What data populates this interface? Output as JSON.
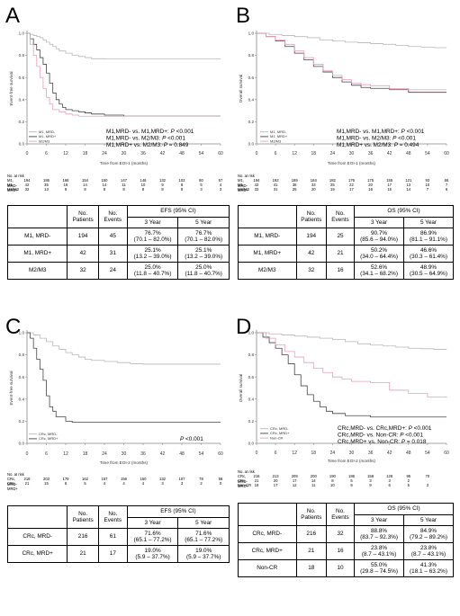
{
  "panels": [
    {
      "letter": "A",
      "ylabel": "Event-free survival",
      "xlabel": "Time from EOI-1 (months)",
      "legend": [
        "M1, MRD-",
        "M1, MRD+",
        "M2/M3"
      ],
      "stats": [
        {
          "text": "M1,MRD- vs. M1,MRD+:",
          "p": "P <0.001"
        },
        {
          "text": "M1,MRD- vs. M2/M3:",
          "p": "P <0.001"
        },
        {
          "text": "M1,MRD+ vs. M2/M3:",
          "p": "P = 0.849"
        }
      ],
      "risk_title": "No. at risk",
      "risk_rows": [
        {
          "label": "M1, MRD-",
          "values": [
            "194",
            "186",
            "166",
            "154",
            "150",
            "147",
            "146",
            "132",
            "103",
            "80",
            "57"
          ]
        },
        {
          "label": "M1, MRD+",
          "values": [
            "42",
            "35",
            "18",
            "14",
            "14",
            "11",
            "10",
            "9",
            "8",
            "6",
            "4"
          ]
        },
        {
          "label": "M2/M3",
          "values": [
            "32",
            "13",
            "9",
            "8",
            "8",
            "8",
            "8",
            "8",
            "8",
            "3",
            "3"
          ]
        }
      ],
      "table": {
        "h_patients": "No. Patients",
        "h_events": "No. Events",
        "h_ci": "EFS (95% CI)",
        "h_3y": "3 Year",
        "h_5y": "5 Year",
        "rows": [
          {
            "label": "M1, MRD-",
            "patients": "194",
            "events": "45",
            "y3": "76.7%",
            "y3ci": "(70.1 – 82.0%)",
            "y5": "76.7%",
            "y5ci": "(70.1 – 82.0%)"
          },
          {
            "label": "M1, MRD+",
            "patients": "42",
            "events": "31",
            "y3": "25.1%",
            "y3ci": "(13.2 – 39.0%)",
            "y5": "25.1%",
            "y5ci": "(13.2 – 39.0%)"
          },
          {
            "label": "M2/M3",
            "patients": "32",
            "events": "24",
            "y3": "25.0%",
            "y3ci": "(11.8 – 40.7%)",
            "y5": "25.0%",
            "y5ci": "(11.8 – 40.7%)"
          }
        ]
      }
    },
    {
      "letter": "B",
      "ylabel": "Overall survival",
      "xlabel": "Time from EOI-1 (months)",
      "legend": [
        "M1, MRD-",
        "M1, MRD+",
        "M2/M3"
      ],
      "stats": [
        {
          "text": "M1,MRD- vs. M1,MRD+:",
          "p": "P <0.001"
        },
        {
          "text": "M1,MRD- vs. M2/M3:",
          "p": "P <0.001"
        },
        {
          "text": "M1,MRD+ vs. M2/M3:",
          "p": "P = 0.494"
        }
      ],
      "risk_title": "No. at risk",
      "risk_rows": [
        {
          "label": "M1, MRD-",
          "values": [
            "194",
            "192",
            "189",
            "184",
            "182",
            "176",
            "175",
            "155",
            "121",
            "93",
            "66"
          ]
        },
        {
          "label": "M1, MRD+",
          "values": [
            "42",
            "41",
            "38",
            "33",
            "25",
            "22",
            "20",
            "17",
            "13",
            "10",
            "7"
          ]
        },
        {
          "label": "M2/M3",
          "values": [
            "32",
            "31",
            "25",
            "20",
            "19",
            "17",
            "16",
            "15",
            "14",
            "7",
            "6"
          ]
        }
      ],
      "table": {
        "h_patients": "No. Patients",
        "h_events": "No. Events",
        "h_ci": "OS (95% CI)",
        "h_3y": "3 Year",
        "h_5y": "5 Year",
        "rows": [
          {
            "label": "M1, MRD-",
            "patients": "194",
            "events": "25",
            "y3": "90.7%",
            "y3ci": "(85.6 – 94.0%)",
            "y5": "86.9%",
            "y5ci": "(81.1 – 91.1%)"
          },
          {
            "label": "M1, MRD+",
            "patients": "42",
            "events": "21",
            "y3": "50.2%",
            "y3ci": "(34.0 – 64.4%)",
            "y5": "46.6%",
            "y5ci": "(30.3 – 61.4%)"
          },
          {
            "label": "M2/M3",
            "patients": "32",
            "events": "16",
            "y3": "52.6%",
            "y3ci": "(34.1 – 68.2%)",
            "y5": "48.9%",
            "y5ci": "(30.5 – 64.9%)"
          }
        ]
      }
    },
    {
      "letter": "C",
      "ylabel": "Event-free survival",
      "xlabel": "Time from EOI-2 (months)",
      "legend": [
        "CRc, MRD-",
        "CRc, MRD+"
      ],
      "stats": [
        {
          "text": "",
          "p": "P <0.001"
        }
      ],
      "risk_title": "No. at risk",
      "risk_rows": [
        {
          "label": "CRc, MRD-",
          "values": [
            "216",
            "203",
            "179",
            "162",
            "157",
            "156",
            "150",
            "132",
            "107",
            "78",
            "58"
          ]
        },
        {
          "label": "CRc, MRD+",
          "values": [
            "21",
            "15",
            "6",
            "5",
            "4",
            "4",
            "4",
            "3",
            "3",
            "2",
            "0"
          ]
        }
      ],
      "table": {
        "h_patients": "No. Patients",
        "h_events": "No. Events",
        "h_ci": "EFS (95% CI)",
        "h_3y": "3 Year",
        "h_5y": "5 Year",
        "rows": [
          {
            "label": "CRc, MRD-",
            "patients": "216",
            "events": "61",
            "y3": "71.6%",
            "y3ci": "(65.1 – 77.2%)",
            "y5": "71.6%",
            "y5ci": "(65.1 – 77.2%)"
          },
          {
            "label": "CRc, MRD+",
            "patients": "21",
            "events": "17",
            "y3": "19.0%",
            "y3ci": "(5.9 – 37.7%)",
            "y5": "19.0%",
            "y5ci": "(5.9 – 37.7%)"
          }
        ]
      }
    },
    {
      "letter": "D",
      "ylabel": "Overall survival",
      "xlabel": "Time from EOI-2 (months)",
      "legend": [
        "CRc, MRD-",
        "CRc, MRD+",
        "Non-CR"
      ],
      "stats": [
        {
          "text": "CRc,MRD- vs. CRc,MRD+:",
          "p": "P <0.001"
        },
        {
          "text": "CRc,MRD- vs. Non-CR:",
          "p": "P <0.001"
        },
        {
          "text": "CRc,MRD+ vs. Non-CR:",
          "p": "P = 0.018"
        }
      ],
      "risk_title": "No. at risk",
      "risk_rows": [
        {
          "label": "CRc, MRD-",
          "values": [
            "216",
            "213",
            "209",
            "200",
            "190",
            "186",
            "158",
            "128",
            "95",
            "70"
          ]
        },
        {
          "label": "CRc, MRD+",
          "values": [
            "21",
            "20",
            "17",
            "14",
            "8",
            "5",
            "3",
            "3",
            "2"
          ]
        },
        {
          "label": "Non-CR",
          "values": [
            "18",
            "17",
            "12",
            "11",
            "10",
            "9",
            "9",
            "6",
            "5",
            "3"
          ]
        }
      ],
      "table": {
        "h_patients": "No. Patients",
        "h_events": "No. Events",
        "h_ci": "OS (95% CI)",
        "h_3y": "3 Year",
        "h_5y": "5 Year",
        "rows": [
          {
            "label": "CRc, MRD-",
            "patients": "216",
            "events": "32",
            "y3": "88.8%",
            "y3ci": "(83.7 – 92.3%)",
            "y5": "84.9%",
            "y5ci": "(79.2 – 89.2%)"
          },
          {
            "label": "CRc, MRD+",
            "patients": "21",
            "events": "16",
            "y3": "23.8%",
            "y3ci": "(8.7 – 43.1%)",
            "y5": "23.8%",
            "y5ci": "(8.7 – 43.1%)"
          },
          {
            "label": "Non-CR",
            "patients": "18",
            "events": "10",
            "y3": "55.0%",
            "y3ci": "(29.8 – 74.5%)",
            "y5": "41.3%",
            "y5ci": "(18.1 – 63.2%)"
          }
        ]
      }
    }
  ],
  "chart_data": [
    {
      "type": "line",
      "ylabel": "Event-free survival",
      "xlabel": "Time from EOI-1 (months)",
      "xlim": [
        0,
        60
      ],
      "ylim": [
        0,
        1.0
      ],
      "xticks": [
        0,
        6,
        12,
        18,
        24,
        30,
        36,
        42,
        48,
        54,
        60
      ],
      "yticks": [
        "0.0",
        "0.2",
        "0.4",
        "0.6",
        "0.8",
        "1.0"
      ],
      "series": [
        {
          "name": "M1, MRD-",
          "color": "#b8b8b8",
          "x": [
            0,
            1,
            2,
            3,
            4,
            5,
            6,
            7,
            8,
            9,
            10,
            12,
            14,
            16,
            18,
            20,
            22,
            24,
            60
          ],
          "y": [
            1.0,
            0.99,
            0.98,
            0.97,
            0.96,
            0.94,
            0.92,
            0.9,
            0.88,
            0.86,
            0.84,
            0.82,
            0.8,
            0.79,
            0.78,
            0.77,
            0.77,
            0.767,
            0.767
          ]
        },
        {
          "name": "M1, MRD+",
          "color": "#444444",
          "x": [
            0,
            1,
            2,
            3,
            4,
            5,
            6,
            7,
            8,
            9,
            10,
            11,
            12,
            14,
            16,
            18,
            20,
            24,
            30,
            60
          ],
          "y": [
            1.0,
            0.95,
            0.9,
            0.85,
            0.78,
            0.72,
            0.64,
            0.55,
            0.46,
            0.4,
            0.36,
            0.33,
            0.31,
            0.3,
            0.29,
            0.28,
            0.27,
            0.26,
            0.251,
            0.251
          ]
        },
        {
          "name": "M2/M3",
          "color": "#e8a0b4",
          "x": [
            0,
            1,
            2,
            3,
            4,
            5,
            6,
            7,
            8,
            10,
            12,
            14,
            16,
            60
          ],
          "y": [
            1.0,
            0.9,
            0.8,
            0.7,
            0.6,
            0.5,
            0.42,
            0.36,
            0.31,
            0.29,
            0.27,
            0.26,
            0.25,
            0.25
          ]
        }
      ]
    },
    {
      "type": "line",
      "ylabel": "Overall survival",
      "xlabel": "Time from EOI-1 (months)",
      "xlim": [
        0,
        60
      ],
      "ylim": [
        0,
        1.0
      ],
      "xticks": [
        0,
        6,
        12,
        18,
        24,
        30,
        36,
        42,
        48,
        54,
        60
      ],
      "yticks": [
        "0.0",
        "0.2",
        "0.4",
        "0.6",
        "0.8",
        "1.0"
      ],
      "series": [
        {
          "name": "M1, MRD-",
          "color": "#b8b8b8",
          "x": [
            0,
            4,
            8,
            12,
            16,
            20,
            24,
            28,
            32,
            36,
            40,
            44,
            48,
            52,
            56,
            60
          ],
          "y": [
            1.0,
            0.99,
            0.98,
            0.97,
            0.96,
            0.94,
            0.93,
            0.92,
            0.915,
            0.907,
            0.9,
            0.89,
            0.88,
            0.875,
            0.87,
            0.869
          ]
        },
        {
          "name": "M1, MRD+",
          "color": "#444444",
          "x": [
            0,
            3,
            6,
            9,
            12,
            15,
            18,
            21,
            24,
            27,
            30,
            33,
            36,
            42,
            48,
            60
          ],
          "y": [
            1.0,
            0.97,
            0.93,
            0.88,
            0.82,
            0.76,
            0.7,
            0.65,
            0.6,
            0.56,
            0.53,
            0.51,
            0.502,
            0.49,
            0.466,
            0.466
          ]
        },
        {
          "name": "M2/M3",
          "color": "#e8a0b4",
          "x": [
            0,
            3,
            6,
            9,
            12,
            15,
            18,
            21,
            24,
            27,
            30,
            33,
            36,
            42,
            48,
            60
          ],
          "y": [
            1.0,
            0.97,
            0.94,
            0.9,
            0.84,
            0.78,
            0.72,
            0.66,
            0.62,
            0.58,
            0.55,
            0.535,
            0.526,
            0.5,
            0.489,
            0.489
          ]
        }
      ]
    },
    {
      "type": "line",
      "ylabel": "Event-free survival",
      "xlabel": "Time from EOI-2 (months)",
      "xlim": [
        0,
        60
      ],
      "ylim": [
        0,
        1.0
      ],
      "xticks": [
        0,
        6,
        12,
        18,
        24,
        30,
        36,
        42,
        48,
        54,
        60
      ],
      "yticks": [
        "0.0",
        "0.2",
        "0.4",
        "0.6",
        "0.8",
        "1.0"
      ],
      "series": [
        {
          "name": "CRc, MRD-",
          "color": "#b8b8b8",
          "x": [
            0,
            2,
            4,
            6,
            8,
            10,
            12,
            14,
            16,
            18,
            20,
            24,
            28,
            32,
            36,
            60
          ],
          "y": [
            1.0,
            0.98,
            0.95,
            0.92,
            0.88,
            0.85,
            0.82,
            0.8,
            0.78,
            0.76,
            0.75,
            0.74,
            0.73,
            0.72,
            0.716,
            0.716
          ]
        },
        {
          "name": "CRc, MRD+",
          "color": "#444444",
          "x": [
            0,
            1,
            2,
            3,
            4,
            5,
            6,
            7,
            8,
            9,
            10,
            12,
            14,
            16,
            60
          ],
          "y": [
            1.0,
            0.95,
            0.86,
            0.76,
            0.67,
            0.57,
            0.43,
            0.33,
            0.29,
            0.24,
            0.24,
            0.2,
            0.19,
            0.19,
            0.19
          ]
        }
      ]
    },
    {
      "type": "line",
      "ylabel": "Overall survival",
      "xlabel": "Time from EOI-2 (months)",
      "xlim": [
        0,
        60
      ],
      "ylim": [
        0,
        1.0
      ],
      "xticks": [
        0,
        6,
        12,
        18,
        24,
        30,
        36,
        42,
        48,
        54,
        60
      ],
      "yticks": [
        "0.0",
        "0.2",
        "0.4",
        "0.6",
        "0.8",
        "1.0"
      ],
      "series": [
        {
          "name": "CRc, MRD-",
          "color": "#b8b8b8",
          "x": [
            0,
            4,
            8,
            12,
            16,
            20,
            24,
            28,
            32,
            36,
            40,
            44,
            48,
            52,
            56,
            60
          ],
          "y": [
            1.0,
            0.99,
            0.98,
            0.97,
            0.96,
            0.95,
            0.94,
            0.92,
            0.9,
            0.888,
            0.88,
            0.87,
            0.86,
            0.855,
            0.85,
            0.849
          ]
        },
        {
          "name": "CRc, MRD+",
          "color": "#444444",
          "x": [
            0,
            2,
            4,
            6,
            8,
            10,
            12,
            14,
            16,
            18,
            20,
            22,
            24,
            28,
            36,
            60
          ],
          "y": [
            1.0,
            0.96,
            0.91,
            0.86,
            0.8,
            0.72,
            0.62,
            0.52,
            0.44,
            0.38,
            0.33,
            0.29,
            0.27,
            0.25,
            0.238,
            0.238
          ]
        },
        {
          "name": "Non-CR",
          "color": "#e8a0b4",
          "x": [
            0,
            3,
            6,
            9,
            12,
            15,
            18,
            21,
            24,
            27,
            30,
            36,
            42,
            48,
            54,
            60
          ],
          "y": [
            1.0,
            0.95,
            0.89,
            0.83,
            0.78,
            0.73,
            0.68,
            0.64,
            0.6,
            0.58,
            0.56,
            0.55,
            0.48,
            0.45,
            0.42,
            0.413
          ]
        }
      ]
    }
  ]
}
